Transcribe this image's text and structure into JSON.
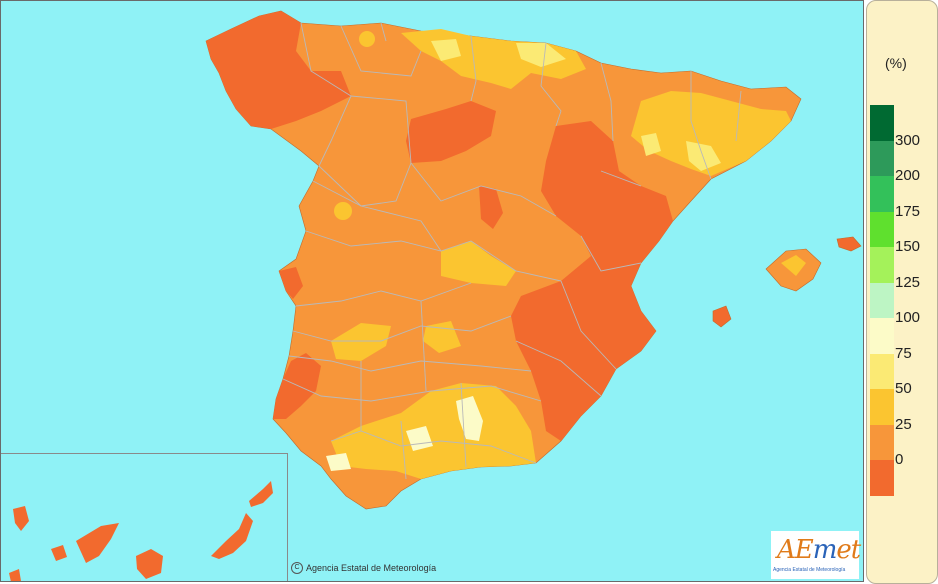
{
  "map": {
    "copyright": "Agencia Estatal de Meteorología",
    "colors": {
      "sea": "#8ff2f6",
      "class_0_25": "#f26a2e",
      "class_25_50": "#f7963a",
      "class_50_75": "#fbc530",
      "class_75_100": "#fbea74",
      "class_100_125": "#fcfbc8",
      "border": "#b9b9b9"
    }
  },
  "logo": {
    "text_a": "AE",
    "text_m": "m",
    "text_et": "et",
    "subtitle": "Agencia Estatal de Meteorología"
  },
  "legend": {
    "unit": "(%)",
    "labels": [
      "300",
      "200",
      "175",
      "150",
      "125",
      "100",
      "75",
      "50",
      "25",
      "0"
    ],
    "swatches": [
      "#006a32",
      "#2d9a5a",
      "#33c15a",
      "#5fe02e",
      "#a4f25a",
      "#bdf5c4",
      "#fcfbc8",
      "#fbea74",
      "#fbc530",
      "#f7963a",
      "#f26a2e"
    ]
  }
}
